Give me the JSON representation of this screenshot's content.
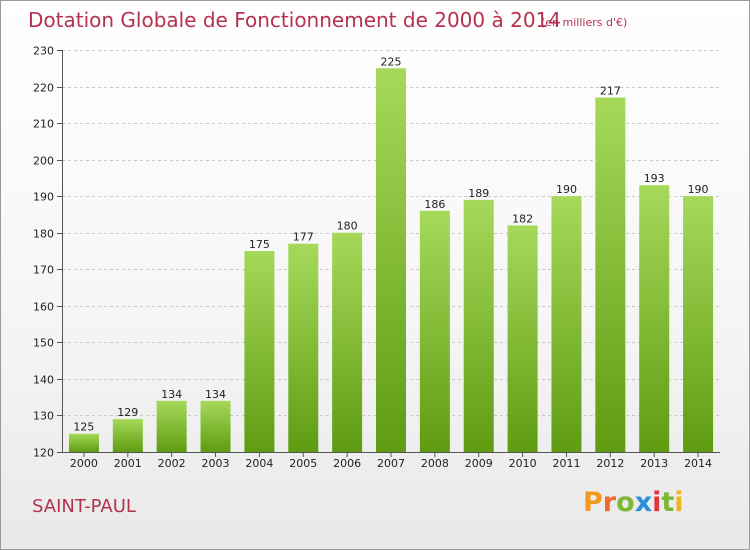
{
  "header": {
    "title": "Dotation Globale de Fonctionnement de 2000 à 2014",
    "unit_note": "(en milliers d'€)"
  },
  "footer": {
    "commune": "SAINT-PAUL",
    "brand": [
      "P",
      "r",
      "o",
      "x",
      "i",
      "t",
      "i"
    ]
  },
  "colors": {
    "title": "#b5314f",
    "bar_top": "#a6d95a",
    "bar_bottom": "#5f9c12",
    "brand_letters": [
      "#f29a1d",
      "#ef6a2a",
      "#7cb637",
      "#2e8fd6",
      "#e2353b",
      "#7cb637",
      "#f2b31d"
    ]
  },
  "chart_data": {
    "type": "bar",
    "title": "Dotation Globale de Fonctionnement de 2000 à 2014",
    "ylim": [
      120,
      230
    ],
    "yticks": [
      120,
      130,
      140,
      150,
      160,
      170,
      180,
      190,
      200,
      210,
      220,
      230
    ],
    "grid": true,
    "categories": [
      "2000",
      "2001",
      "2002",
      "2003",
      "2004",
      "2005",
      "2006",
      "2007",
      "2008",
      "2009",
      "2010",
      "2011",
      "2012",
      "2013",
      "2014"
    ],
    "values": [
      125,
      129,
      134,
      134,
      175,
      177,
      180,
      225,
      186,
      189,
      182,
      190,
      217,
      193,
      190
    ]
  }
}
